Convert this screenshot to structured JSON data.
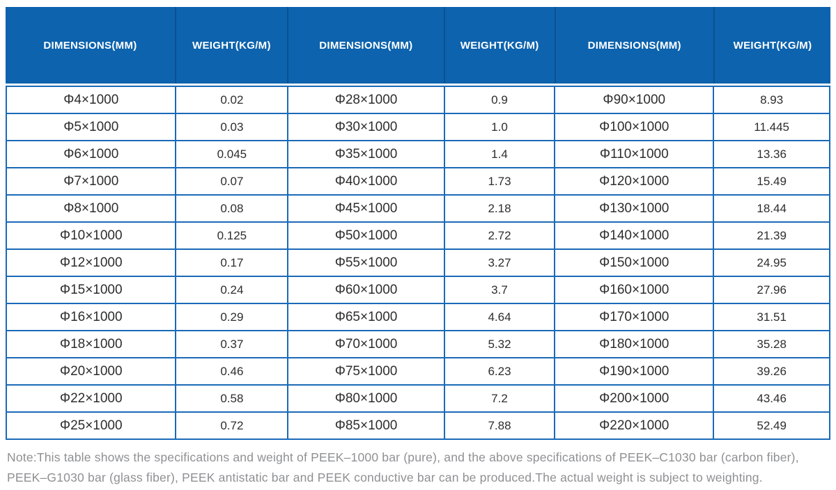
{
  "colors": {
    "header_bg": "#0d63ad",
    "header_divider": "#0a5190",
    "header_text": "#ffffff",
    "body_border": "#1a6ab8",
    "body_text": "#2d2d2d",
    "note_text": "#8f9093",
    "page_bg": "#ffffff"
  },
  "table": {
    "columns": [
      "DIMENSIONS(MM)",
      "WEIGHT(KG/M)",
      "DIMENSIONS(MM)",
      "WEIGHT(KG/M)",
      "DIMENSIONS(MM)",
      "WEIGHT(KG/M)"
    ],
    "rows": [
      [
        "Φ4×1000",
        "0.02",
        "Φ28×1000",
        "0.9",
        "Φ90×1000",
        "8.93"
      ],
      [
        "Φ5×1000",
        "0.03",
        "Φ30×1000",
        "1.0",
        "Φ100×1000",
        "11.445"
      ],
      [
        "Φ6×1000",
        "0.045",
        "Φ35×1000",
        "1.4",
        "Φ110×1000",
        "13.36"
      ],
      [
        "Φ7×1000",
        "0.07",
        "Φ40×1000",
        "1.73",
        "Φ120×1000",
        "15.49"
      ],
      [
        "Φ8×1000",
        "0.08",
        "Φ45×1000",
        "2.18",
        "Φ130×1000",
        "18.44"
      ],
      [
        "Φ10×1000",
        "0.125",
        "Φ50×1000",
        "2.72",
        "Φ140×1000",
        "21.39"
      ],
      [
        "Φ12×1000",
        "0.17",
        "Φ55×1000",
        "3.27",
        "Φ150×1000",
        "24.95"
      ],
      [
        "Φ15×1000",
        "0.24",
        "Φ60×1000",
        "3.7",
        "Φ160×1000",
        "27.96"
      ],
      [
        "Φ16×1000",
        "0.29",
        "Φ65×1000",
        "4.64",
        "Φ170×1000",
        "31.51"
      ],
      [
        "Φ18×1000",
        "0.37",
        "Φ70×1000",
        "5.32",
        "Φ180×1000",
        "35.28"
      ],
      [
        "Φ20×1000",
        "0.46",
        "Φ75×1000",
        "6.23",
        "Φ190×1000",
        "39.26"
      ],
      [
        "Φ22×1000",
        "0.58",
        "Φ80×1000",
        "7.2",
        "Φ200×1000",
        "43.46"
      ],
      [
        "Φ25×1000",
        "0.72",
        "Φ85×1000",
        "7.88",
        "Φ220×1000",
        "52.49"
      ]
    ]
  },
  "note": {
    "text": "Note:This table shows the specifications and weight of PEEK–1000 bar (pure), and the above specifications of PEEK–C1030 bar (carbon fiber), PEEK–G1030 bar (glass fiber), PEEK antistatic bar and PEEK conductive bar can be produced.The actual weight is subject to weighting."
  }
}
